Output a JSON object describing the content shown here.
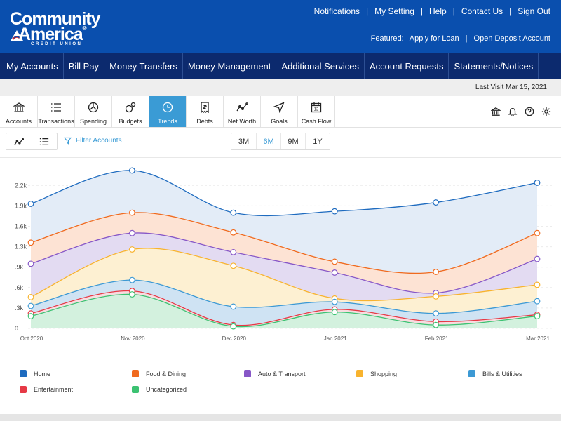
{
  "brand": {
    "line1": "Community",
    "line2": "America",
    "reg": "®",
    "sub": "CREDIT UNION"
  },
  "top_links": [
    "Notifications",
    "My Setting",
    "Help",
    "Contact Us",
    "Sign Out"
  ],
  "featured": {
    "label": "Featured:",
    "links": [
      "Apply for Loan",
      "Open Deposit Account"
    ]
  },
  "main_nav": [
    "My Accounts",
    "Bill Pay",
    "Money Transfers",
    "Money Management",
    "Additional Services",
    "Account Requests",
    "Statements/Notices"
  ],
  "last_visit": "Last Visit Mar 15, 2021",
  "tabs": [
    {
      "label": "Accounts",
      "icon": "bank-icon"
    },
    {
      "label": "Transactions",
      "icon": "list-icon"
    },
    {
      "label": "Spending",
      "icon": "spending-icon"
    },
    {
      "label": "Budgets",
      "icon": "budgets-icon"
    },
    {
      "label": "Trends",
      "icon": "clock-icon",
      "active": true
    },
    {
      "label": "Debts",
      "icon": "receipt-icon"
    },
    {
      "label": "Net Worth",
      "icon": "net-worth-icon"
    },
    {
      "label": "Goals",
      "icon": "navigation-icon"
    },
    {
      "label": "Cash Flow",
      "icon": "calendar-icon"
    }
  ],
  "tool_icons": [
    "bank-icon",
    "bell-icon",
    "help-icon",
    "gear-icon"
  ],
  "filter_label": "Filter Accounts",
  "periods": [
    "3M",
    "6M",
    "9M",
    "1Y"
  ],
  "active_period": "6M",
  "colors": {
    "header": "#0a4fae",
    "nav": "#0c2a6e",
    "accent": "#3a9bd5"
  },
  "chart_data": {
    "type": "area",
    "stacked": true,
    "x": [
      "Oct 2020",
      "Nov 2020",
      "Dec 2020",
      "Jan 2021",
      "Feb 2021",
      "Mar 2021"
    ],
    "y_ticks": [
      "0",
      ".3k",
      ".6k",
      ".9k",
      "1.3k",
      "1.6k",
      "1.9k",
      "2.2k"
    ],
    "grid": true,
    "legend_position": "bottom",
    "series": [
      {
        "name": "Home",
        "color": "#1e6bbf",
        "fill": "#e3ecf7",
        "values": [
          1.83,
          2.32,
          1.7,
          1.72,
          1.85,
          2.14
        ]
      },
      {
        "name": "Food & Dining",
        "color": "#f06a1e",
        "fill": "#fde3d4",
        "values": [
          1.26,
          1.7,
          1.41,
          0.98,
          0.83,
          1.4
        ]
      },
      {
        "name": "Auto & Transport",
        "color": "#8757c7",
        "fill": "#e3dbf2",
        "values": [
          0.95,
          1.4,
          1.12,
          0.82,
          0.52,
          1.02
        ]
      },
      {
        "name": "Shopping",
        "color": "#f8b32e",
        "fill": "#fdf0d2",
        "values": [
          0.46,
          1.16,
          0.92,
          0.44,
          0.47,
          0.64
        ]
      },
      {
        "name": "Bills & Utilities",
        "color": "#3c99d4",
        "fill": "#cfe3f3",
        "values": [
          0.33,
          0.71,
          0.32,
          0.39,
          0.22,
          0.4
        ]
      },
      {
        "name": "Entertainment",
        "color": "#e63946",
        "fill": "#f7dce0",
        "values": [
          0.22,
          0.55,
          0.05,
          0.28,
          0.1,
          0.2
        ]
      },
      {
        "name": "Uncategorized",
        "color": "#3cc272",
        "fill": "#d3f1de",
        "values": [
          0.18,
          0.5,
          0.03,
          0.24,
          0.05,
          0.18
        ]
      }
    ]
  }
}
